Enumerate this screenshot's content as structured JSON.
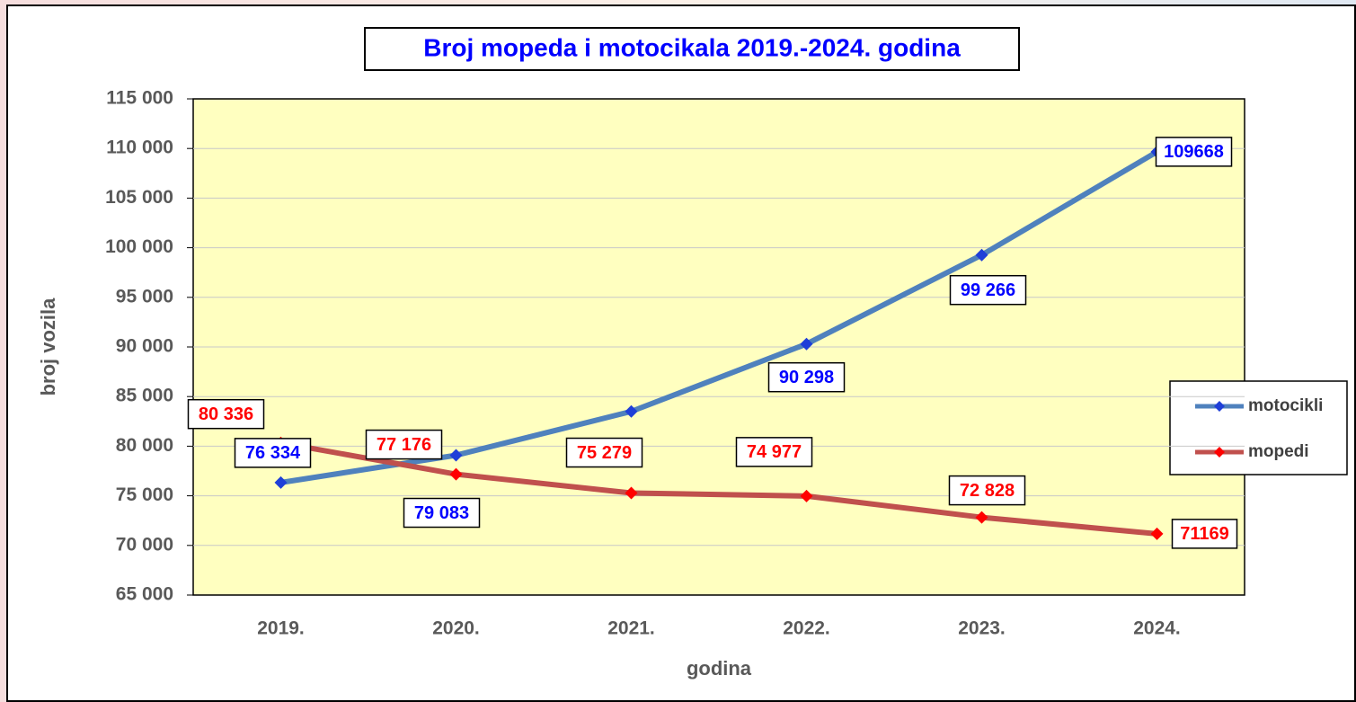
{
  "chart_data": {
    "type": "line",
    "title": "Broj  mopeda i motocikala 2019.-2024. godina",
    "x_label": "godina",
    "y_label": "broj vozila",
    "categories": [
      "2019.",
      "2020.",
      "2021.",
      "2022.",
      "2023.",
      "2024."
    ],
    "series": [
      {
        "name": "motocikli",
        "color": "#4f81bd",
        "marker_color": "#1f3fd8",
        "label_color": "#0000ff",
        "values": [
          76334,
          79083,
          83500,
          90298,
          99266,
          109668
        ],
        "value_labels": [
          "76 334",
          "79 083",
          null,
          "90 298",
          "99 266",
          "109668"
        ]
      },
      {
        "name": "mopedi",
        "color": "#c0504d",
        "marker_color": "#ff0000",
        "label_color": "#ff0000",
        "values": [
          80336,
          77176,
          75279,
          74977,
          72828,
          71169
        ],
        "value_labels": [
          "80 336",
          "77 176",
          "75 279",
          "74 977",
          "72 828",
          "71169"
        ]
      }
    ],
    "ylim": [
      65000,
      115000
    ],
    "yticks": [
      {
        "value": 65000,
        "label": "65 000"
      },
      {
        "value": 70000,
        "label": "70 000"
      },
      {
        "value": 75000,
        "label": "75 000"
      },
      {
        "value": 80000,
        "label": "80 000"
      },
      {
        "value": 85000,
        "label": "85 000"
      },
      {
        "value": 90000,
        "label": "90 000"
      },
      {
        "value": 95000,
        "label": "95 000"
      },
      {
        "value": 100000,
        "label": "100 000"
      },
      {
        "value": 105000,
        "label": "105 000"
      },
      {
        "value": 110000,
        "label": "110 000"
      },
      {
        "value": 115000,
        "label": "115 000"
      }
    ],
    "grid": true,
    "legend": "right"
  }
}
